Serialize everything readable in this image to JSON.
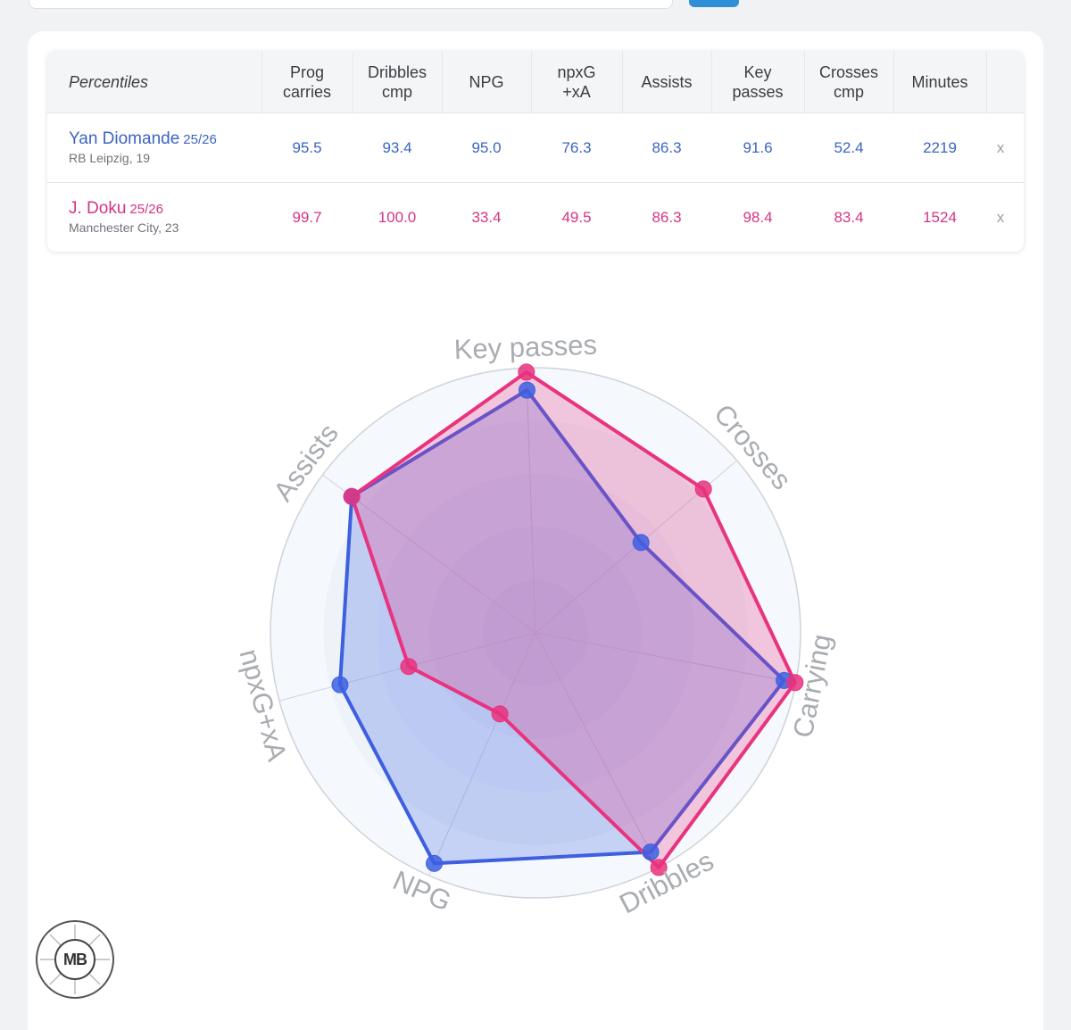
{
  "table": {
    "label_header": "Percentiles",
    "columns": [
      "Prog\ncarries",
      "Dribbles\ncmp",
      "NPG",
      "npxG\n+xA",
      "Assists",
      "Key\npasses",
      "Crosses\ncmp",
      "Minutes"
    ],
    "remove_label": "x",
    "players": [
      {
        "name": "Yan Diomande",
        "season": "25/26",
        "club": "RB Leipzig, 19",
        "color": "#3b64c3",
        "values": [
          "95.5",
          "93.4",
          "95.0",
          "76.3",
          "86.3",
          "91.6",
          "52.4",
          "2219"
        ]
      },
      {
        "name": "J. Doku",
        "season": "25/26",
        "club": "Manchester City, 23",
        "color": "#d63384",
        "values": [
          "99.7",
          "100.0",
          "33.4",
          "49.5",
          "86.3",
          "98.4",
          "83.4",
          "1524"
        ]
      }
    ]
  },
  "chart_data": {
    "type": "radar",
    "axes": [
      "Key passes",
      "Crosses",
      "Carrying",
      "Dribbles",
      "NPG",
      "npxG+xA",
      "Assists"
    ],
    "range": [
      0,
      100
    ],
    "series": [
      {
        "name": "Yan Diomande",
        "color": "#3d5fe0",
        "values": [
          91.6,
          52.4,
          95.5,
          93.4,
          95.0,
          76.3,
          86.3
        ]
      },
      {
        "name": "J. Doku",
        "color": "#e8337e",
        "values": [
          98.4,
          83.4,
          99.7,
          100.0,
          33.4,
          49.5,
          86.3
        ]
      }
    ]
  },
  "logo": {
    "text": "MB"
  }
}
